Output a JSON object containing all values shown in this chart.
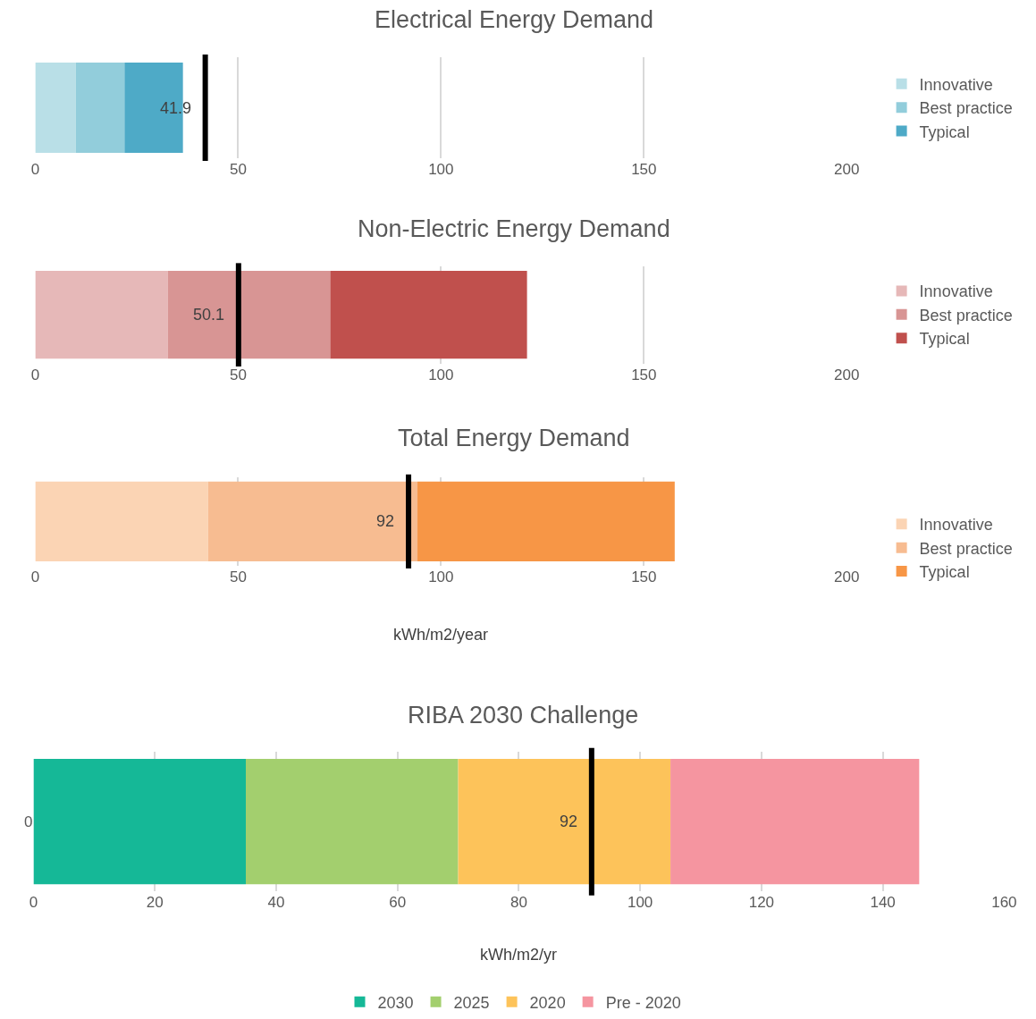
{
  "chart_data": [
    {
      "type": "bar",
      "orientation": "horizontal",
      "stacked": true,
      "title": "Electrical Energy Demand",
      "categories": [
        null
      ],
      "series": [
        {
          "name": "Innovative",
          "color": "#b9dfe7",
          "values": [
            10
          ]
        },
        {
          "name": "Best practice",
          "color": "#92cddb",
          "values": [
            12
          ]
        },
        {
          "name": "Typical",
          "color": "#4eaac7",
          "values": [
            14.4
          ]
        }
      ],
      "xlim": [
        0,
        200
      ],
      "xticks": [
        0,
        50,
        100,
        150,
        200
      ],
      "grid": "x",
      "legend": "right",
      "ref_lines": [
        {
          "axis": "x",
          "value": 41.9,
          "label": "41.9",
          "color": "#000000"
        }
      ]
    },
    {
      "type": "bar",
      "orientation": "horizontal",
      "stacked": true,
      "title": "Non-Electric Energy Demand",
      "categories": [
        null
      ],
      "series": [
        {
          "name": "Innovative",
          "color": "#e6b8b8",
          "values": [
            32.7
          ]
        },
        {
          "name": "Best practice",
          "color": "#d89594",
          "values": [
            40
          ]
        },
        {
          "name": "Typical",
          "color": "#c0504d",
          "values": [
            48.5
          ]
        }
      ],
      "xlim": [
        0,
        200
      ],
      "xticks": [
        0,
        50,
        100,
        150,
        200
      ],
      "grid": "x",
      "legend": "right",
      "ref_lines": [
        {
          "axis": "x",
          "value": 50.1,
          "label": "50.1",
          "color": "#000000"
        }
      ]
    },
    {
      "type": "bar",
      "orientation": "horizontal",
      "stacked": true,
      "title": "Total Energy Demand",
      "xlabel": "kWh/m2/year",
      "categories": [
        null
      ],
      "series": [
        {
          "name": "Innovative",
          "color": "#fbd4b4",
          "values": [
            42.6
          ]
        },
        {
          "name": "Best practice",
          "color": "#f7bc91",
          "values": [
            51.6
          ]
        },
        {
          "name": "Typical",
          "color": "#f79646",
          "values": [
            63.4
          ]
        }
      ],
      "xlim": [
        0,
        200
      ],
      "xticks": [
        0,
        50,
        100,
        150,
        200
      ],
      "grid": "x",
      "legend": "right",
      "ref_lines": [
        {
          "axis": "x",
          "value": 92,
          "label": "92",
          "color": "#000000"
        }
      ]
    },
    {
      "type": "bar",
      "orientation": "horizontal",
      "stacked": true,
      "title": "RIBA 2030 Challenge",
      "xlabel": "kWh/m2/yr",
      "categories": [
        "0"
      ],
      "series": [
        {
          "name": "2030",
          "color": "#15b897",
          "values": [
            35
          ]
        },
        {
          "name": "2025",
          "color": "#a3cf6e",
          "values": [
            35
          ]
        },
        {
          "name": "2020",
          "color": "#fdc35a",
          "values": [
            35
          ]
        },
        {
          "name": "Pre - 2020",
          "color": "#f595a0",
          "values": [
            41
          ]
        }
      ],
      "xlim": [
        0,
        160
      ],
      "xticks": [
        0,
        20,
        40,
        60,
        80,
        100,
        120,
        140,
        160
      ],
      "grid": "x",
      "legend": "bottom",
      "ref_lines": [
        {
          "axis": "x",
          "value": 92,
          "label": "92",
          "color": "#000000"
        }
      ]
    }
  ]
}
